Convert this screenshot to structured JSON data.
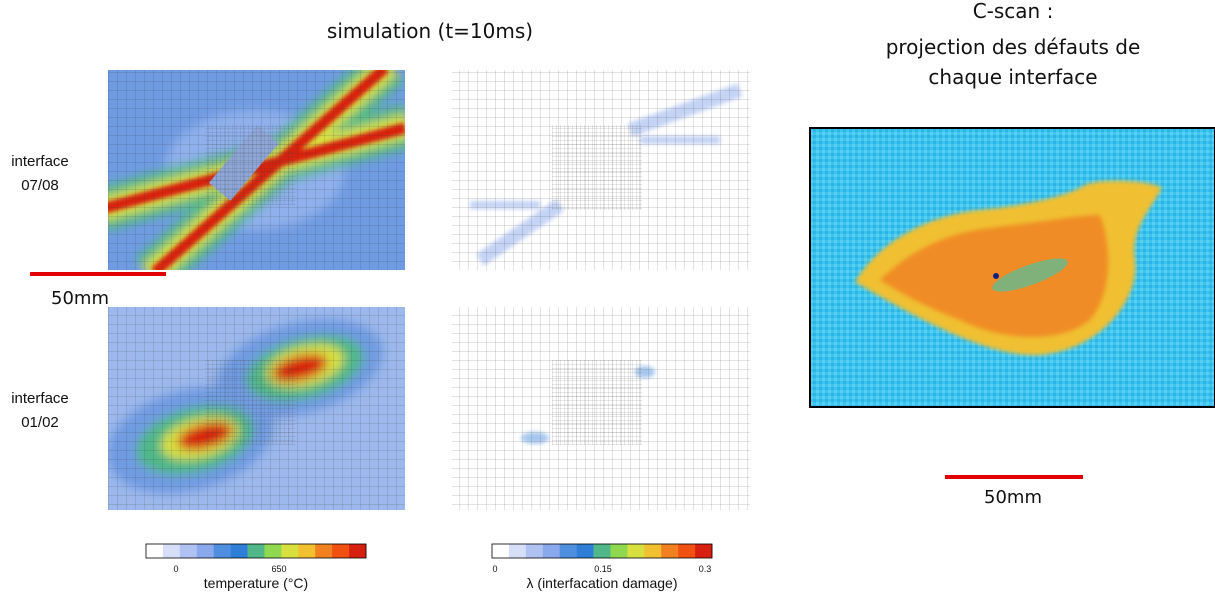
{
  "title": "simulation (t=10ms)",
  "cscan_title": [
    "C-scan :",
    "projection des défauts de",
    "chaque interface"
  ],
  "rows": [
    {
      "label": [
        "interface",
        "07/08"
      ]
    },
    {
      "label": [
        "interface",
        "01/02"
      ]
    }
  ],
  "scale_bars": [
    "50mm",
    "50mm"
  ],
  "colorbars": [
    {
      "ticks": [
        "0",
        "650"
      ],
      "label": "temperature (°C)"
    },
    {
      "ticks": [
        "0",
        "0.15",
        "0.3"
      ],
      "label": "λ (interfacation damage)"
    }
  ],
  "colormap": [
    "#ffffff",
    "#d6def8",
    "#b0c2f2",
    "#8aa8ec",
    "#4f8fe0",
    "#2f7fd8",
    "#50b888",
    "#8fd850",
    "#d8e040",
    "#f0c030",
    "#f08020",
    "#f05010",
    "#d82010"
  ]
}
